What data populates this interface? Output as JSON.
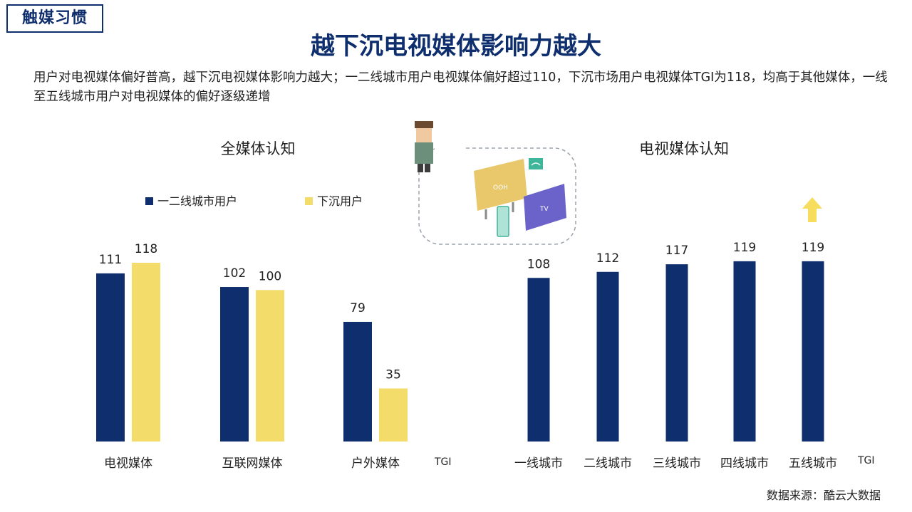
{
  "tag": "触媒习惯",
  "title": "越下沉电视媒体影响力越大",
  "summary": "用户对电视媒体偏好普高，越下沉电视媒体影响力越大；一二线城市用户电视媒体偏好超过110，下沉市场用户电视媒体TGI为118，均高于其他媒体，一线至五线城市用户对电视媒体的偏好逐级递增",
  "source": "数据来源：酷云大数据",
  "illustration": {
    "screen1_label": "OOH",
    "screen2_label": "TV"
  },
  "colors": {
    "navy": "#0e2e6e",
    "yellow": "#f3dc6a",
    "arrow": "#f6dd5d"
  },
  "chart_data": [
    {
      "type": "bar",
      "title": "全媒体认知",
      "categories": [
        "电视媒体",
        "互联网媒体",
        "户外媒体"
      ],
      "series": [
        {
          "name": "一二线城市用户",
          "values": [
            111,
            102,
            79
          ]
        },
        {
          "name": "下沉用户",
          "values": [
            118,
            100,
            35
          ]
        }
      ],
      "unit_label": "TGI",
      "legend": "top-left"
    },
    {
      "type": "bar",
      "title": "电视媒体认知",
      "categories": [
        "一线城市",
        "二线城市",
        "三线城市",
        "四线城市",
        "五线城市"
      ],
      "series": [
        {
          "values": [
            108,
            112,
            117,
            119,
            119
          ]
        }
      ],
      "unit_label": "TGI",
      "annotation": "up-arrow"
    }
  ]
}
